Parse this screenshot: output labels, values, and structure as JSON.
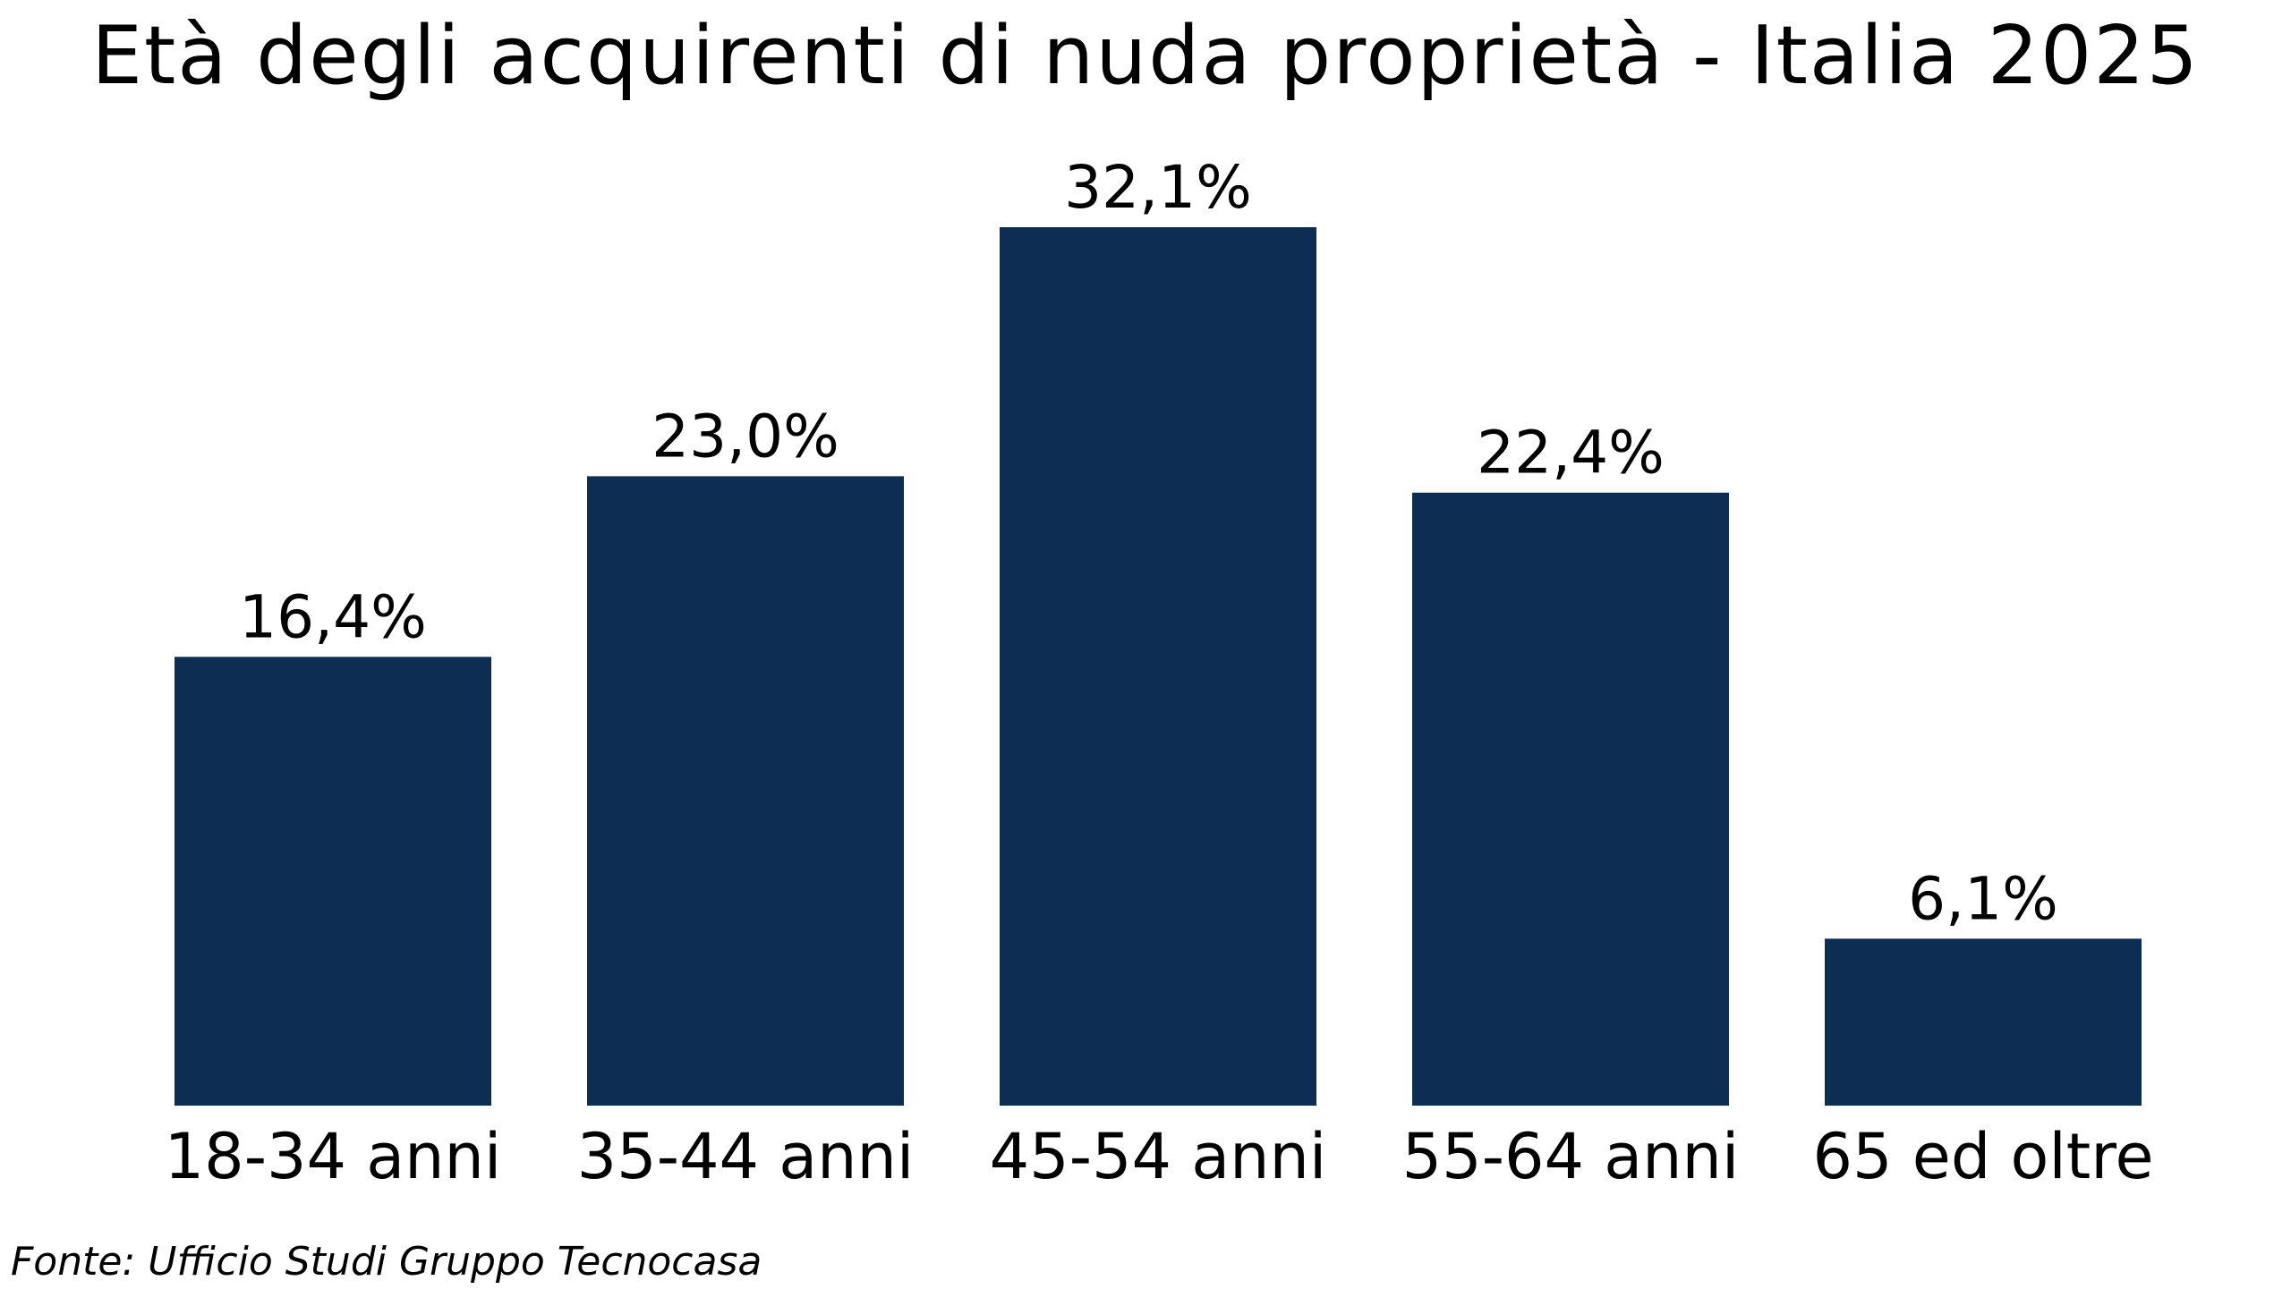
{
  "chart_data": {
    "type": "bar",
    "title": "Età degli acquirenti di nuda proprietà - Italia 2025",
    "categories": [
      "18-34 anni",
      "35-44 anni",
      "45-54 anni",
      "55-64 anni",
      "65 ed oltre"
    ],
    "values": [
      16.4,
      23.0,
      32.1,
      22.4,
      6.1
    ],
    "data_labels": [
      "16,4%",
      "23,0%",
      "32,1%",
      "22,4%",
      "6,1%"
    ],
    "xlabel": "",
    "ylabel": "",
    "ylim": [
      0,
      32.1
    ],
    "grid": false,
    "legend": "none",
    "bar_color": "#0d2d52"
  },
  "source": "Fonte: Ufficio Studi Gruppo Tecnocasa"
}
